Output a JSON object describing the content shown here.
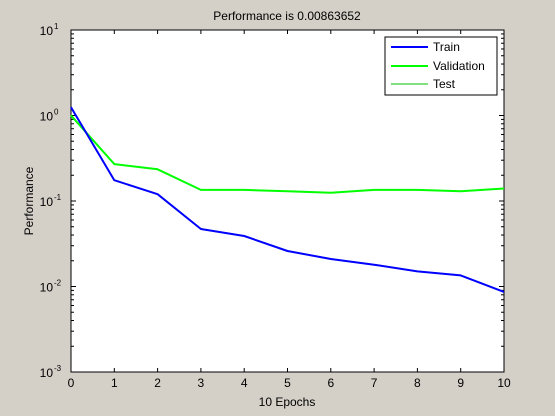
{
  "chart_data": {
    "type": "line",
    "title": "Performance is 0.00863652",
    "xlabel": "10 Epochs",
    "ylabel": "Performance",
    "xlim": [
      0,
      10
    ],
    "ylim": [
      0.001,
      10
    ],
    "yscale": "log",
    "grid": false,
    "legend_position": "top-right",
    "x_ticks": [
      "0",
      "1",
      "2",
      "3",
      "4",
      "5",
      "6",
      "7",
      "8",
      "9",
      "10"
    ],
    "y_ticks": [
      {
        "value": 0.001,
        "base": "10",
        "exp": "-3"
      },
      {
        "value": 0.01,
        "base": "10",
        "exp": "-2"
      },
      {
        "value": 0.1,
        "base": "10",
        "exp": "-1"
      },
      {
        "value": 1,
        "base": "10",
        "exp": "0"
      },
      {
        "value": 10,
        "base": "10",
        "exp": "1"
      }
    ],
    "x": [
      0,
      1,
      2,
      3,
      4,
      5,
      6,
      7,
      8,
      9,
      10
    ],
    "series": [
      {
        "name": "Train",
        "color": "#0000ff",
        "values": [
          1.25,
          0.175,
          0.12,
          0.047,
          0.039,
          0.026,
          0.021,
          0.018,
          0.015,
          0.0135,
          0.00864
        ]
      },
      {
        "name": "Validation",
        "color": "#00ff00",
        "values": [
          1.0,
          0.27,
          0.235,
          0.135,
          0.135,
          0.13,
          0.125,
          0.135,
          0.135,
          0.13,
          0.14
        ]
      },
      {
        "name": "Test",
        "color": "#00c000",
        "values": [
          1.02,
          0.27,
          0.235,
          0.135,
          0.135,
          0.13,
          0.125,
          0.135,
          0.135,
          0.13,
          0.14
        ]
      }
    ]
  }
}
